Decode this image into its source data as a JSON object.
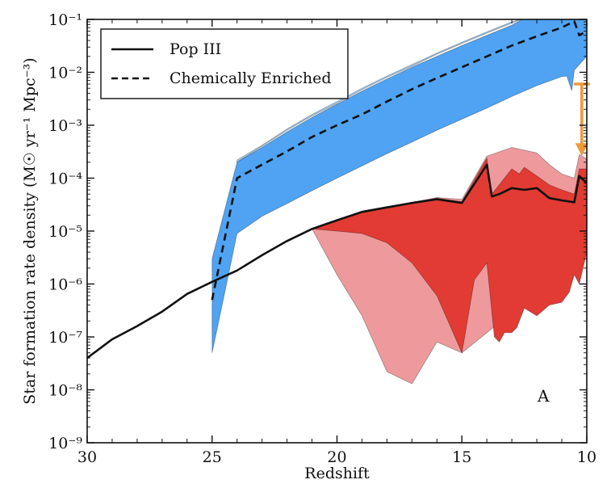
{
  "chart_data": {
    "type": "area",
    "xlabel": "Redshift",
    "ylabel": "Star formation rate density  (M☉ yr⁻¹ Mpc⁻³)",
    "xlim": [
      30,
      10
    ],
    "ylim_log10": [
      -9,
      -1
    ],
    "x_ticks": [
      30,
      25,
      20,
      15,
      10
    ],
    "y_ticks": [
      {
        "exp": -9,
        "label": "10⁻⁹"
      },
      {
        "exp": -8,
        "label": "10⁻⁸"
      },
      {
        "exp": -7,
        "label": "10⁻⁷"
      },
      {
        "exp": -6,
        "label": "10⁻⁶"
      },
      {
        "exp": -5,
        "label": "10⁻⁵"
      },
      {
        "exp": -4,
        "label": "10⁻⁴"
      },
      {
        "exp": -3,
        "label": "10⁻³"
      },
      {
        "exp": -2,
        "label": "10⁻²"
      },
      {
        "exp": -1,
        "label": "10⁻¹"
      }
    ],
    "panel_label": "A",
    "legend": {
      "placement": "top-left",
      "entries": [
        {
          "label": "Pop III",
          "style": "solid"
        },
        {
          "label": "Chemically Enriched",
          "style": "dashed"
        }
      ]
    },
    "colors": {
      "blue_band": "#4fa3f2",
      "light_blue_band": "#a7d1f5",
      "red_band": "#e23b33",
      "pink_band": "#ee9a9c",
      "line": "#111111",
      "arrow": "#ef9a3a"
    },
    "series": [
      {
        "name": "Pop III",
        "kind": "line",
        "style": "solid",
        "points": [
          [
            30,
            4e-08
          ],
          [
            29,
            9e-08
          ],
          [
            28,
            1.6e-07
          ],
          [
            27,
            3e-07
          ],
          [
            26,
            6.5e-07
          ],
          [
            25,
            1.1e-06
          ],
          [
            24,
            1.8e-06
          ],
          [
            23,
            3.5e-06
          ],
          [
            22,
            6.5e-06
          ],
          [
            21,
            1.1e-05
          ],
          [
            20,
            1.6e-05
          ],
          [
            19,
            2.3e-05
          ],
          [
            18,
            2.8e-05
          ],
          [
            17,
            3.4e-05
          ],
          [
            16,
            4e-05
          ],
          [
            15,
            3.4e-05
          ],
          [
            14,
            0.00018
          ],
          [
            13.8,
            4.5e-05
          ],
          [
            13.5,
            5e-05
          ],
          [
            13,
            6.5e-05
          ],
          [
            12.5,
            6e-05
          ],
          [
            12,
            6.5e-05
          ],
          [
            11.5,
            4.2e-05
          ],
          [
            11,
            3.8e-05
          ],
          [
            10.5,
            3.5e-05
          ],
          [
            10.3,
            0.00011
          ],
          [
            10,
            8e-05
          ]
        ]
      },
      {
        "name": "Chemically Enriched",
        "kind": "line",
        "style": "dashed",
        "points": [
          [
            25,
            5e-07
          ],
          [
            24,
            0.0001
          ],
          [
            23,
            0.00018
          ],
          [
            22,
            0.00032
          ],
          [
            21,
            0.0006
          ],
          [
            20,
            0.001
          ],
          [
            19,
            0.0016
          ],
          [
            18,
            0.0028
          ],
          [
            17,
            0.0048
          ],
          [
            16,
            0.0078
          ],
          [
            15,
            0.0125
          ],
          [
            14,
            0.02
          ],
          [
            13,
            0.032
          ],
          [
            12,
            0.048
          ],
          [
            11,
            0.07
          ],
          [
            10.5,
            0.092
          ],
          [
            10.3,
            0.05
          ],
          [
            10,
            0.06
          ]
        ]
      }
    ],
    "bands": [
      {
        "color_key": "light_blue_band",
        "upper": [
          [
            24,
            0.00022
          ],
          [
            23,
            0.00042
          ],
          [
            22,
            0.00085
          ],
          [
            21,
            0.0016
          ],
          [
            20,
            0.0028
          ],
          [
            19,
            0.005
          ],
          [
            18,
            0.0085
          ],
          [
            17,
            0.014
          ],
          [
            16,
            0.023
          ],
          [
            15,
            0.037
          ],
          [
            14,
            0.058
          ],
          [
            13,
            0.09
          ],
          [
            12.5,
            0.105
          ]
        ],
        "lower": [
          [
            12.5,
            0.105
          ],
          [
            13,
            0.085
          ],
          [
            14,
            0.055
          ],
          [
            15,
            0.035
          ],
          [
            16,
            0.022
          ],
          [
            17,
            0.013
          ],
          [
            18,
            0.008
          ],
          [
            19,
            0.0047
          ],
          [
            20,
            0.0026
          ],
          [
            21,
            0.0015
          ],
          [
            22,
            0.0008
          ],
          [
            23,
            0.0004
          ],
          [
            24,
            0.0002
          ]
        ]
      },
      {
        "color_key": "blue_band",
        "upper": [
          [
            25,
            3e-06
          ],
          [
            24,
            0.0002
          ],
          [
            23,
            0.00038
          ],
          [
            22,
            0.00075
          ],
          [
            21,
            0.0014
          ],
          [
            20,
            0.0025
          ],
          [
            19,
            0.0044
          ],
          [
            18,
            0.0075
          ],
          [
            17,
            0.0125
          ],
          [
            16,
            0.02
          ],
          [
            15,
            0.032
          ],
          [
            14,
            0.05
          ],
          [
            13,
            0.078
          ],
          [
            12.5,
            0.105
          ],
          [
            10,
            0.105
          ]
        ],
        "lower": [
          [
            10,
            0.02
          ],
          [
            10.5,
            0.011
          ],
          [
            10.6,
            0.0045
          ],
          [
            10.8,
            0.0085
          ],
          [
            11,
            0.0083
          ],
          [
            12,
            0.0056
          ],
          [
            13,
            0.0035
          ],
          [
            14,
            0.0021
          ],
          [
            15,
            0.0013
          ],
          [
            16,
            0.0008
          ],
          [
            17,
            0.00048
          ],
          [
            18,
            0.00029
          ],
          [
            19,
            0.00017
          ],
          [
            20,
            0.0001
          ],
          [
            21,
            5.8e-05
          ],
          [
            22,
            3.3e-05
          ],
          [
            23,
            1.9e-05
          ],
          [
            24,
            9e-06
          ],
          [
            25,
            5e-08
          ]
        ]
      },
      {
        "color_key": "pink_band",
        "upper": [
          [
            21,
            1.1e-05
          ],
          [
            19,
            2.4e-05
          ],
          [
            17,
            3.5e-05
          ],
          [
            16,
            4.3e-05
          ],
          [
            15,
            4e-05
          ],
          [
            14,
            0.00026
          ],
          [
            13,
            0.00038
          ],
          [
            12,
            0.0003
          ],
          [
            11.5,
            0.00018
          ],
          [
            11,
            0.00012
          ],
          [
            10.5,
            0.0001
          ],
          [
            10.3,
            0.00028
          ],
          [
            10,
            0.00023
          ]
        ],
        "lower": [
          [
            10,
            4e-06
          ],
          [
            15,
            5e-08
          ],
          [
            16,
            8e-08
          ],
          [
            17,
            1.3e-08
          ],
          [
            18,
            2.2e-08
          ],
          [
            19,
            2.5e-07
          ],
          [
            20,
            1.5e-06
          ],
          [
            21,
            1.1e-05
          ]
        ]
      },
      {
        "color_key": "red_band",
        "upper": [
          [
            21,
            1.1e-05
          ],
          [
            19,
            2.3e-05
          ],
          [
            17,
            3.4e-05
          ],
          [
            16,
            4.2e-05
          ],
          [
            15,
            3.6e-05
          ],
          [
            14,
            0.00024
          ],
          [
            13.8,
            5e-05
          ],
          [
            13,
            0.00015
          ],
          [
            12.7,
            0.00012
          ],
          [
            12.5,
            0.00016
          ],
          [
            12,
            0.00011
          ],
          [
            11.5,
            7.5e-05
          ],
          [
            11,
            6e-05
          ],
          [
            10.5,
            5e-05
          ],
          [
            10.3,
            0.00015
          ],
          [
            10,
            0.00015
          ]
        ],
        "lower": [
          [
            10,
            4e-06
          ],
          [
            10.3,
            1e-06
          ],
          [
            10.5,
            1.5e-06
          ],
          [
            10.7,
            7e-07
          ],
          [
            11,
            4.5e-07
          ],
          [
            11.5,
            4e-07
          ],
          [
            12,
            2.5e-07
          ],
          [
            12.5,
            3.5e-07
          ],
          [
            12.8,
            1.5e-07
          ],
          [
            13,
            1.2e-07
          ],
          [
            13.3,
            1.2e-07
          ],
          [
            13.5,
            8e-08
          ],
          [
            13.7,
            1e-07
          ],
          [
            14,
            2.5e-06
          ],
          [
            14.5,
            1.2e-06
          ],
          [
            15,
            5e-08
          ],
          [
            16,
            6e-07
          ],
          [
            17,
            2.5e-06
          ],
          [
            18,
            6e-06
          ],
          [
            19,
            9e-06
          ],
          [
            20,
            1e-05
          ],
          [
            21,
            1.1e-05
          ]
        ]
      }
    ],
    "arrow": {
      "x": 10.2,
      "y_from": 0.006,
      "y_to": 0.00028
    }
  }
}
